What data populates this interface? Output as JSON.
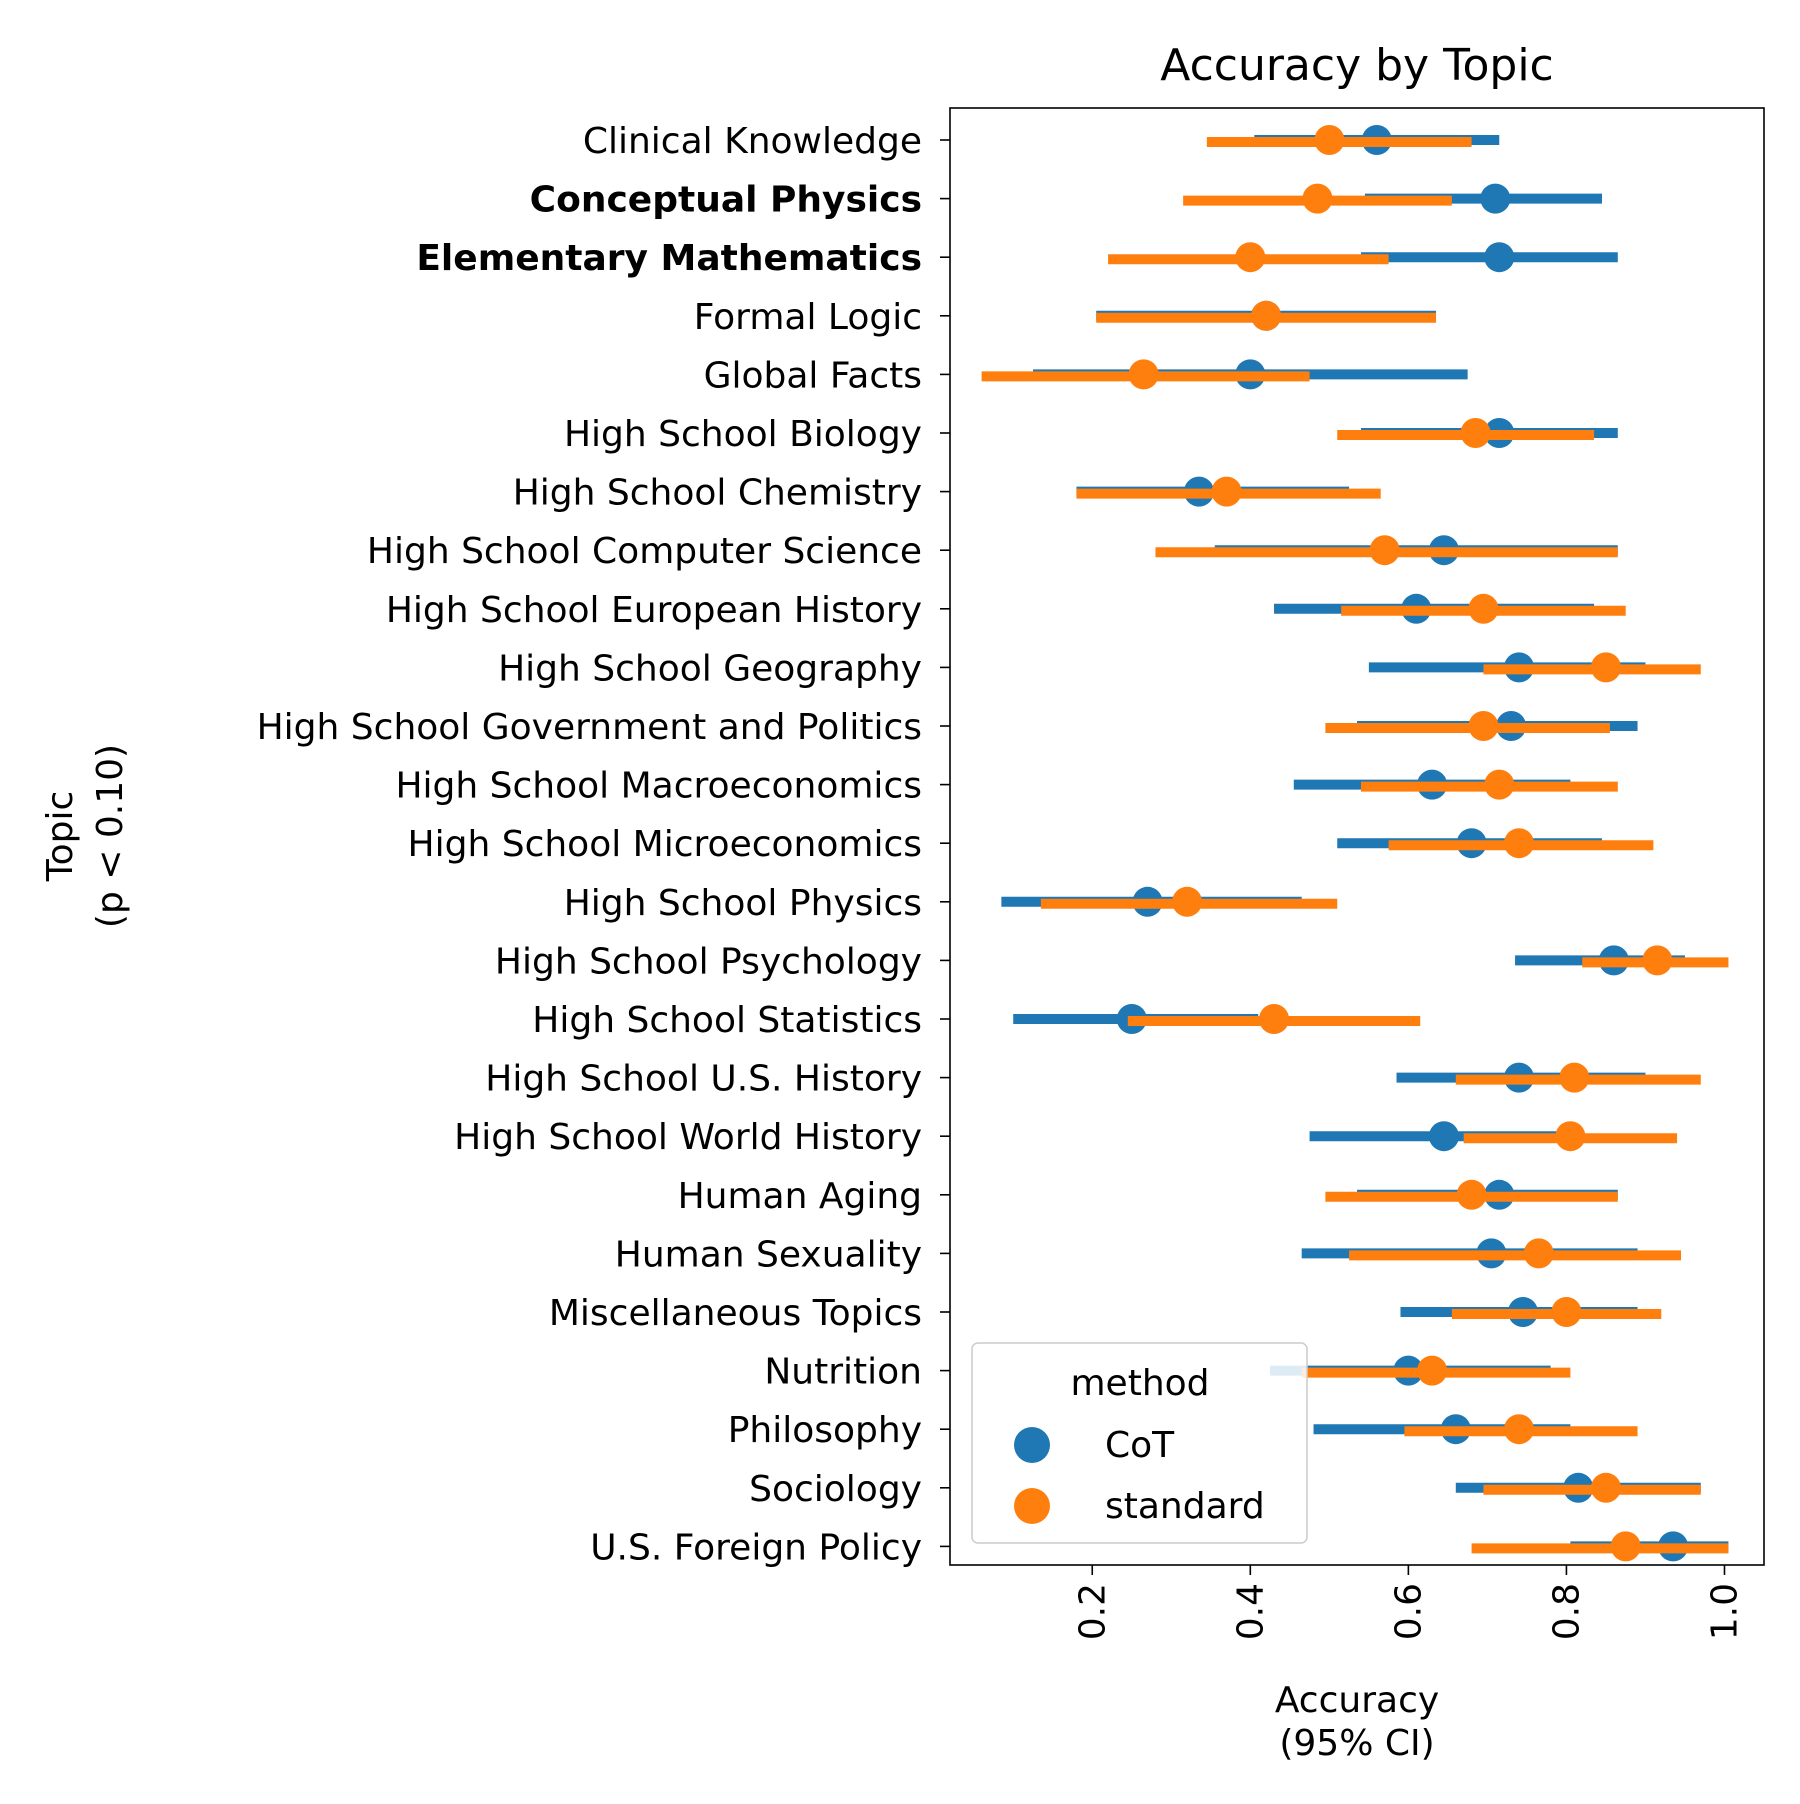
{
  "chart_data": {
    "type": "scatter",
    "title": "Accuracy by Topic",
    "xlabel_line1": "Accuracy",
    "xlabel_line2": "(95% CI)",
    "ylabel_line1": "Topic",
    "ylabel_line2": "(p < 0.10)",
    "xlim": [
      0.02,
      1.05
    ],
    "xticks": [
      "0.2",
      "0.4",
      "0.6",
      "0.8",
      "1.0"
    ],
    "legend_title": "method",
    "legend_position": "lower-left",
    "colors": {
      "CoT": "#1f77b4",
      "standard": "#ff7f0e"
    },
    "categories": [
      "Clinical Knowledge",
      "Conceptual Physics",
      "Elementary Mathematics",
      "Formal Logic",
      "Global Facts",
      "High School Biology",
      "High School Chemistry",
      "High School Computer Science",
      "High School European History",
      "High School Geography",
      "High School Government and Politics",
      "High School Macroeconomics",
      "High School Microeconomics",
      "High School Physics",
      "High School Psychology",
      "High School Statistics",
      "High School U.S. History",
      "High School World History",
      "Human Aging",
      "Human Sexuality",
      "Miscellaneous Topics",
      "Nutrition",
      "Philosophy",
      "Sociology",
      "U.S. Foreign Policy"
    ],
    "bold_categories": [
      "Conceptual Physics",
      "Elementary Mathematics"
    ],
    "series": [
      {
        "name": "CoT",
        "values": [
          0.56,
          0.71,
          0.715,
          0.42,
          0.4,
          0.715,
          0.335,
          0.645,
          0.61,
          0.74,
          0.73,
          0.63,
          0.68,
          0.27,
          0.86,
          0.25,
          0.74,
          0.645,
          0.715,
          0.705,
          0.745,
          0.6,
          0.66,
          0.815,
          0.935
        ],
        "lower": [
          0.405,
          0.545,
          0.54,
          0.205,
          0.125,
          0.54,
          0.18,
          0.355,
          0.43,
          0.55,
          0.535,
          0.455,
          0.51,
          0.085,
          0.735,
          0.1,
          0.585,
          0.475,
          0.535,
          0.465,
          0.59,
          0.425,
          0.48,
          0.66,
          0.805
        ],
        "upper": [
          0.715,
          0.845,
          0.865,
          0.635,
          0.675,
          0.865,
          0.525,
          0.865,
          0.835,
          0.9,
          0.89,
          0.805,
          0.845,
          0.465,
          0.95,
          0.41,
          0.9,
          0.8,
          0.865,
          0.89,
          0.89,
          0.78,
          0.805,
          0.97,
          1.005
        ]
      },
      {
        "name": "standard",
        "values": [
          0.5,
          0.485,
          0.4,
          0.42,
          0.265,
          0.685,
          0.37,
          0.57,
          0.695,
          0.85,
          0.695,
          0.715,
          0.74,
          0.32,
          0.915,
          0.43,
          0.81,
          0.805,
          0.68,
          0.765,
          0.8,
          0.63,
          0.74,
          0.85,
          0.875
        ],
        "lower": [
          0.345,
          0.315,
          0.22,
          0.205,
          0.06,
          0.51,
          0.18,
          0.28,
          0.515,
          0.695,
          0.495,
          0.54,
          0.575,
          0.135,
          0.82,
          0.245,
          0.66,
          0.67,
          0.495,
          0.525,
          0.655,
          0.465,
          0.595,
          0.695,
          0.68
        ],
        "upper": [
          0.68,
          0.655,
          0.575,
          0.635,
          0.475,
          0.835,
          0.565,
          0.865,
          0.875,
          0.97,
          0.855,
          0.865,
          0.91,
          0.51,
          1.005,
          0.615,
          0.97,
          0.94,
          0.865,
          0.945,
          0.92,
          0.805,
          0.89,
          0.97,
          1.005
        ]
      }
    ]
  }
}
